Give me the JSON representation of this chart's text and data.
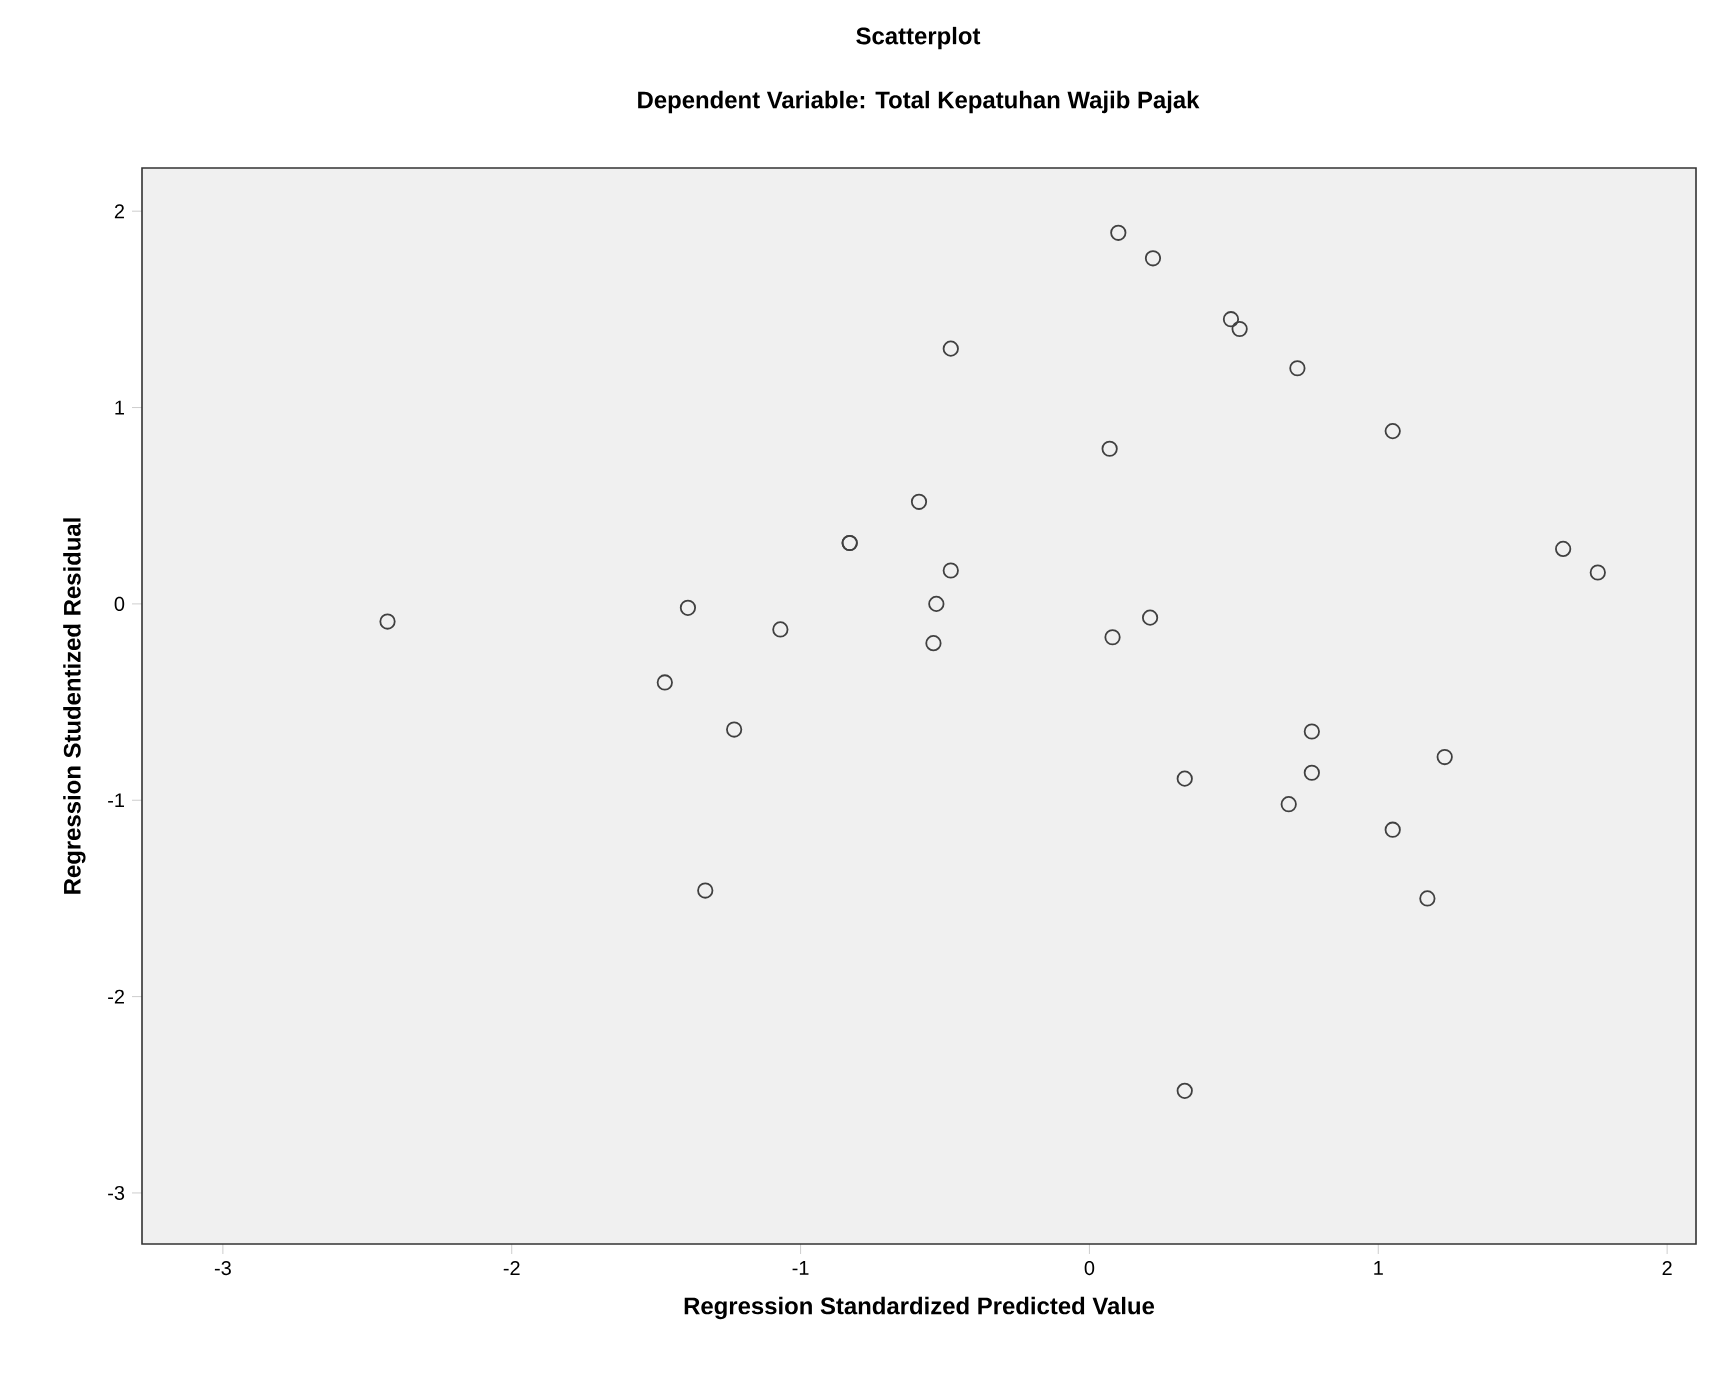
{
  "chart_data": {
    "type": "scatter",
    "title": "Scatterplot",
    "subtitle": "Dependent Variable: Total Kepatuhan Wajib Pajak",
    "xlabel": "Regression Standardized Predicted Value",
    "ylabel": "Regression Studentized Residual",
    "xlim": [
      -3.28,
      2.1
    ],
    "ylim": [
      -3.26,
      2.22
    ],
    "xticks": [
      -3,
      -2,
      -1,
      0,
      1,
      2
    ],
    "yticks": [
      -3,
      -2,
      -1,
      0,
      1,
      2
    ],
    "marker": "circle",
    "grid": false,
    "series": [
      {
        "color": "#404040",
        "x": [
          -2.43,
          -0.48,
          -0.59,
          -0.83,
          -0.83,
          -0.48,
          -0.53,
          -0.54,
          -1.39,
          -1.07,
          -1.47,
          -1.23,
          -1.33,
          0.1,
          0.22,
          0.49,
          0.52,
          0.72,
          1.05,
          0.07,
          1.64,
          1.76,
          0.21,
          0.08,
          0.77,
          1.23,
          0.33,
          0.77,
          0.69,
          1.05,
          1.17,
          0.33
        ],
        "values": [
          -0.09,
          1.3,
          0.52,
          0.31,
          0.31,
          0.17,
          0.0,
          -0.2,
          -0.02,
          -0.13,
          -0.4,
          -0.64,
          -1.46,
          1.89,
          1.76,
          1.45,
          1.4,
          1.2,
          0.88,
          0.79,
          0.28,
          0.16,
          -0.07,
          -0.17,
          -0.65,
          -0.78,
          -0.89,
          -0.86,
          -1.02,
          -1.15,
          -1.5,
          -2.48
        ]
      }
    ]
  }
}
